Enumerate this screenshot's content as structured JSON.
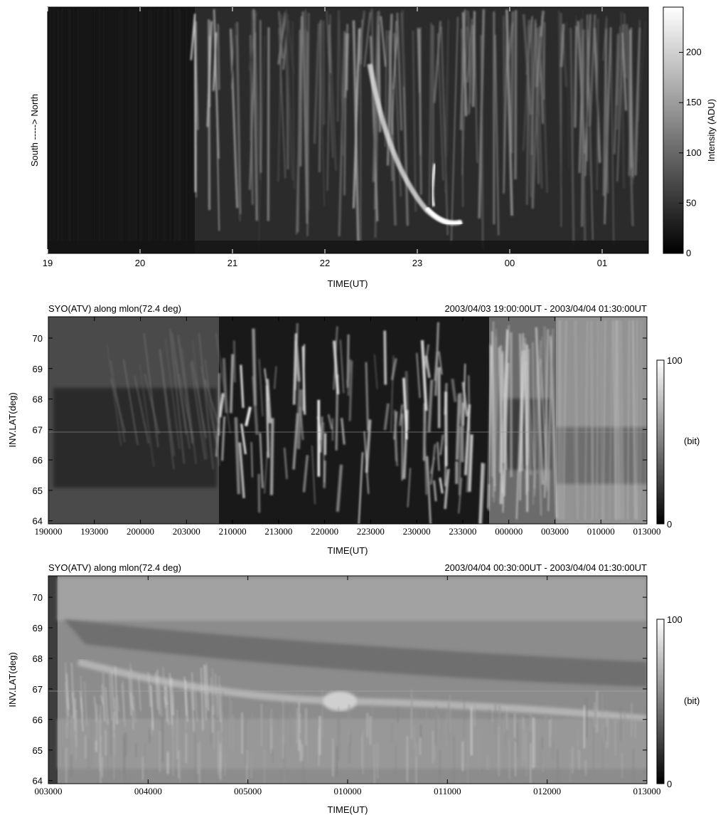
{
  "panels": [
    {
      "id": "keogram-top",
      "title_left": "",
      "title_right": "",
      "ylabel": "South  ----->  North",
      "xlabel": "TIME(UT)",
      "x_ticks": [
        "19",
        "20",
        "21",
        "22",
        "23",
        "00",
        "01"
      ],
      "y_ticks": [],
      "colorbar": {
        "label": "Intensity (ADU)",
        "ticks": [
          "0",
          "50",
          "100",
          "150",
          "200"
        ],
        "tick_values": [
          0,
          50,
          100,
          150,
          200
        ],
        "max": 245
      }
    },
    {
      "id": "keogram-middle",
      "title_left": "SYO(ATV) along mlon(72.4  deg)",
      "title_right": "2003/04/03 19:00:00UT - 2003/04/04 01:30:00UT",
      "ylabel": "INV.LAT(deg)",
      "xlabel": "TIME(UT)",
      "x_ticks": [
        "190000",
        "193000",
        "200000",
        "203000",
        "210000",
        "213000",
        "220000",
        "223000",
        "230000",
        "233000",
        "000000",
        "003000",
        "010000",
        "013000"
      ],
      "y_ticks": [
        "64",
        "65",
        "66",
        "67",
        "68",
        "69",
        "70"
      ],
      "y_range": [
        63.9,
        70.7
      ],
      "colorbar": {
        "label": "(bit)",
        "ticks": [
          "0",
          "100"
        ],
        "tick_values": [
          0,
          100
        ],
        "max": 100
      }
    },
    {
      "id": "keogram-bottom",
      "title_left": "SYO(ATV) along mlon(72.4  deg)",
      "title_right": "2003/04/04 00:30:00UT - 2003/04/04 01:30:00UT",
      "ylabel": "INV.LAT(deg)",
      "xlabel": "TIME(UT)",
      "x_ticks": [
        "003000",
        "004000",
        "005000",
        "010000",
        "011000",
        "012000",
        "013000"
      ],
      "y_ticks": [
        "64",
        "65",
        "66",
        "67",
        "68",
        "69",
        "70"
      ],
      "y_range": [
        63.9,
        70.7
      ],
      "colorbar": {
        "label": "(bit)",
        "ticks": [
          "0",
          "100"
        ],
        "tick_values": [
          0,
          100
        ],
        "max": 100
      }
    }
  ],
  "chart_data": [
    {
      "type": "heatmap",
      "title": "",
      "xlabel": "TIME(UT)",
      "ylabel": "South  ----->  North",
      "x_range_hours": [
        19.0,
        25.5
      ],
      "colorscale": "grayscale",
      "color_range": [
        0,
        245
      ],
      "colorbar_label": "Intensity (ADU)"
    },
    {
      "type": "heatmap",
      "title": "SYO(ATV) along mlon(72.4  deg)",
      "time_span": "2003/04/03 19:00:00UT - 2003/04/04 01:30:00UT",
      "xlabel": "TIME(UT)",
      "ylabel": "INV.LAT(deg)",
      "ylim": [
        63.9,
        70.7
      ],
      "colorscale": "grayscale",
      "color_range": [
        0,
        100
      ],
      "colorbar_label": "(bit)"
    },
    {
      "type": "heatmap",
      "title": "SYO(ATV) along mlon(72.4  deg)",
      "time_span": "2003/04/04 00:30:00UT - 2003/04/04 01:30:00UT",
      "xlabel": "TIME(UT)",
      "ylabel": "INV.LAT(deg)",
      "ylim": [
        63.9,
        70.7
      ],
      "colorscale": "grayscale",
      "color_range": [
        0,
        100
      ],
      "colorbar_label": "(bit)"
    }
  ]
}
